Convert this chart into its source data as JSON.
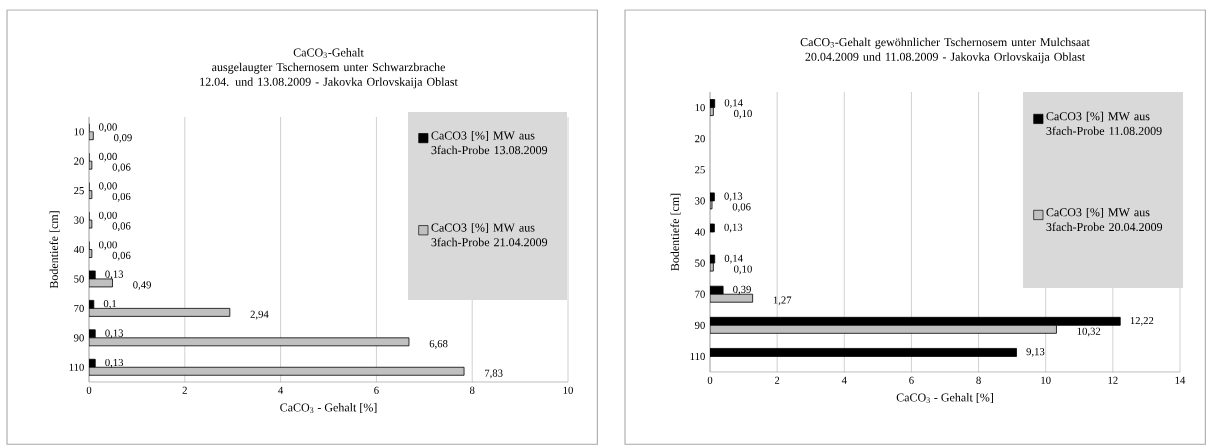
{
  "chart_data": [
    {
      "type": "bar",
      "orientation": "horizontal",
      "title": "CaCO$_{3}$-Gehalt",
      "subtitle": "ausgelaugter Tschernosem unter Schwarzbrache 12.04. und 13.08.2009 - Jakovka Orlovskaija Oblast",
      "xlabel": "CaCO$_{3}$ - Gehalt [%]",
      "ylabel": "Bodentiefe [cm]",
      "categories": [
        "10",
        "20",
        "25",
        "30",
        "40",
        "50",
        "70",
        "90",
        "110"
      ],
      "series": [
        {
          "name": "CaCO3 [%] MW aus 3fach-Probe 13.08.2009",
          "color": "#000000",
          "values": [
            0,
            0,
            0,
            0,
            0,
            0.13,
            0.1,
            0.13,
            0.13
          ],
          "value_labels": [
            "0,00",
            "0,00",
            "0,00",
            "0,00",
            "0,00",
            "0,13",
            "0,1",
            "0,13",
            "0,13"
          ]
        },
        {
          "name": "CaCO3 [%] MW aus 3fach-Probe 21.04.2009",
          "color": "#c0c0c0",
          "values": [
            0.09,
            0.06,
            0.06,
            0.06,
            0.06,
            0.49,
            2.94,
            6.68,
            7.83
          ],
          "value_labels": [
            "0,09",
            "0,06",
            "0,06",
            "0,06",
            "0,06",
            "0,49",
            "2,94",
            "6,68",
            "7,83"
          ]
        }
      ],
      "xlim": [
        0,
        10
      ],
      "xticks": [
        0,
        2,
        4,
        6,
        8,
        10
      ],
      "grid": "x",
      "legend": "top right"
    },
    {
      "type": "bar",
      "orientation": "horizontal",
      "title": "CaCO$_{3}$-Gehalt gewöhnlicher Tschernosem unter Mulchsaat",
      "subtitle": "20.04.2009 und 11.08.2009 - Jakovka Orlovskaija Oblast",
      "xlabel": "CaCO$_{3}$ - Gehalt [%]",
      "ylabel": "Bodentiefe [cm]",
      "categories": [
        "10",
        "20",
        "25",
        "30",
        "40",
        "50",
        "70",
        "90",
        "110"
      ],
      "series": [
        {
          "name": "CaCO3 [%] MW aus 3fach-Probe 11.08.2009",
          "color": "#000000",
          "values": [
            0.14,
            null,
            null,
            0.13,
            0.13,
            0.14,
            0.39,
            12.22,
            9.13
          ],
          "value_labels": [
            "0,14",
            null,
            null,
            "0,13",
            "0,13",
            "0,14",
            "0,39",
            "12,22",
            "9,13"
          ]
        },
        {
          "name": "CaCO3 [%] MW aus 3fach-Probe 20.04.2009",
          "color": "#c0c0c0",
          "values": [
            0.1,
            null,
            null,
            0.06,
            null,
            0.1,
            1.27,
            10.32,
            null
          ],
          "value_labels": [
            "0,10",
            null,
            null,
            "0,06",
            null,
            "0,10",
            "1,27",
            "10,32",
            null
          ]
        }
      ],
      "xlim": [
        0,
        14
      ],
      "xticks": [
        0,
        2,
        4,
        6,
        8,
        10,
        12,
        14
      ],
      "grid": "x",
      "legend": "top right"
    }
  ]
}
